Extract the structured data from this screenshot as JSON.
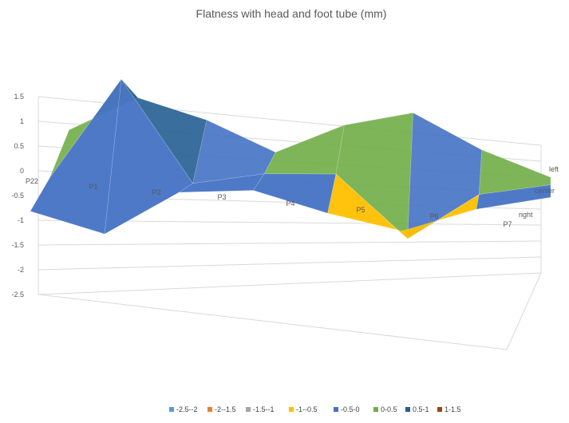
{
  "chart_data": {
    "type": "surface",
    "title": "Flatness with head and foot tube (mm)",
    "z_ticks": [
      "1.5",
      "1",
      "0.5",
      "0",
      "-0.5",
      "-1",
      "-1.5",
      "-2",
      "-2.5"
    ],
    "zlim": [
      -2.5,
      1.5
    ],
    "x_categories": [
      "P22",
      "P1",
      "P2",
      "P3",
      "P4",
      "P5",
      "P6",
      "P7"
    ],
    "y_categories": [
      "right",
      "center",
      "left"
    ],
    "values": [
      [
        -0.8,
        -1.2,
        -0.3,
        -0.2,
        -0.6,
        -0.9,
        -0.4,
        -0.1
      ],
      [
        -0.6,
        1.5,
        -0.5,
        -0.2,
        -0.1,
        -1.3,
        -0.3,
        0.0
      ],
      [
        -0.1,
        0.7,
        0.4,
        -0.1,
        0.6,
        1.0,
        0.4,
        0.0
      ]
    ],
    "legend": [
      {
        "label": "-2.5--2",
        "color": "#5B9BD5"
      },
      {
        "label": "-2--1.5",
        "color": "#ED7D31"
      },
      {
        "label": "-1.5--1",
        "color": "#A5A5A5"
      },
      {
        "label": "-1--0.5",
        "color": "#FFC000"
      },
      {
        "label": "-0.5-0",
        "color": "#4472C4"
      },
      {
        "label": "0-0.5",
        "color": "#70AD47"
      },
      {
        "label": "0.5-1",
        "color": "#255E91"
      },
      {
        "label": "1-1.5",
        "color": "#9E480E"
      }
    ],
    "legend_position": "bottom",
    "grid": true
  }
}
